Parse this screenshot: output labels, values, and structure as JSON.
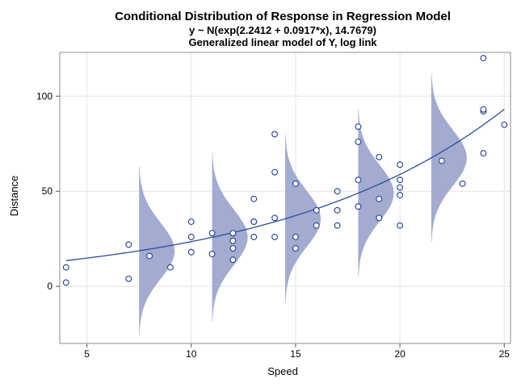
{
  "chart_data": {
    "type": "scatter",
    "title": "Conditional Distribution of Response in Regression Model",
    "subtitle1": "y ~ N(exp(2.2412 + 0.0917*x), 14.7679)",
    "subtitle2": "Generalized linear model of Y, log link",
    "xlabel": "Speed",
    "ylabel": "Distance",
    "xlim": [
      3.7,
      25.3
    ],
    "ylim": [
      -30,
      123
    ],
    "xticks": [
      5,
      10,
      15,
      20,
      25
    ],
    "yticks": [
      0,
      50,
      100
    ],
    "grid": true,
    "model": {
      "b0": 2.2412,
      "b1": 0.0917,
      "sigma": 14.7679
    },
    "density_positions": [
      7.5,
      11,
      14.5,
      18,
      21.5
    ],
    "points": [
      [
        4,
        2
      ],
      [
        4,
        10
      ],
      [
        7,
        4
      ],
      [
        7,
        22
      ],
      [
        8,
        16
      ],
      [
        9,
        10
      ],
      [
        10,
        18
      ],
      [
        10,
        26
      ],
      [
        10,
        34
      ],
      [
        11,
        17
      ],
      [
        11,
        28
      ],
      [
        12,
        14
      ],
      [
        12,
        20
      ],
      [
        12,
        24
      ],
      [
        12,
        28
      ],
      [
        13,
        26
      ],
      [
        13,
        34
      ],
      [
        13,
        34
      ],
      [
        13,
        46
      ],
      [
        14,
        26
      ],
      [
        14,
        36
      ],
      [
        14,
        60
      ],
      [
        14,
        80
      ],
      [
        15,
        20
      ],
      [
        15,
        26
      ],
      [
        15,
        54
      ],
      [
        16,
        32
      ],
      [
        16,
        40
      ],
      [
        17,
        32
      ],
      [
        17,
        40
      ],
      [
        17,
        50
      ],
      [
        18,
        42
      ],
      [
        18,
        56
      ],
      [
        18,
        76
      ],
      [
        18,
        84
      ],
      [
        19,
        36
      ],
      [
        19,
        46
      ],
      [
        19,
        68
      ],
      [
        20,
        32
      ],
      [
        20,
        48
      ],
      [
        20,
        52
      ],
      [
        20,
        56
      ],
      [
        20,
        64
      ],
      [
        22,
        66
      ],
      [
        23,
        54
      ],
      [
        24,
        70
      ],
      [
        24,
        92
      ],
      [
        24,
        93
      ],
      [
        24,
        120
      ],
      [
        25,
        85
      ]
    ],
    "colors": {
      "points": "#1f3f93",
      "fit_line": "#2a4d9a",
      "density_fill": "#a3abd1",
      "grid": "#e4e4e4",
      "frame": "#8c8c8c"
    }
  }
}
